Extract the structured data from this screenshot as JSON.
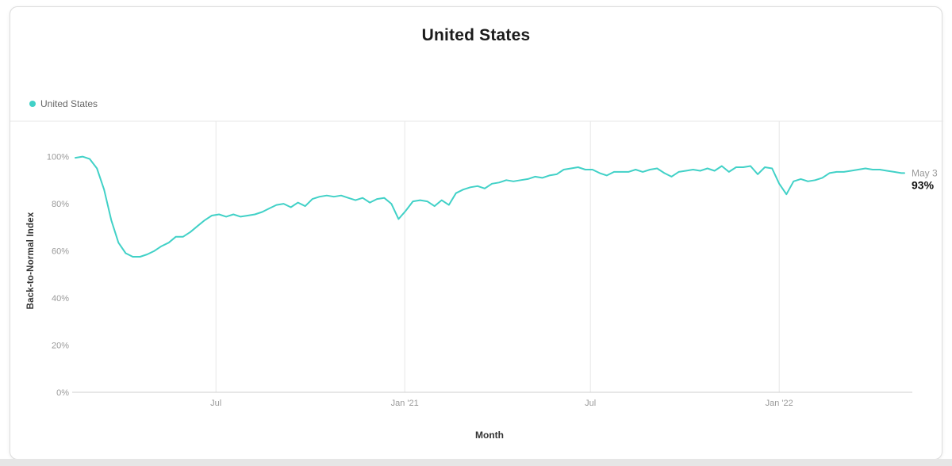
{
  "chart_data": {
    "type": "line",
    "title": "United States",
    "xlabel": "Month",
    "ylabel": "Back-to-Normal Index",
    "ylim": [
      0,
      115
    ],
    "yticks": [
      0,
      20,
      40,
      60,
      80,
      100
    ],
    "ytick_suffix": "%",
    "grid": "vertical",
    "legend_position": "top-left",
    "xticks": [
      {
        "date": "2020-07-01",
        "label": "Jul"
      },
      {
        "date": "2021-01-01",
        "label": "Jan '21"
      },
      {
        "date": "2021-07-01",
        "label": "Jul"
      },
      {
        "date": "2022-01-01",
        "label": "Jan '22"
      }
    ],
    "annotation": {
      "date_label": "May 3",
      "value_label": "93%"
    },
    "series": [
      {
        "name": "United States",
        "color": "#41d1c7",
        "points": [
          [
            "2020-02-15",
            99.5
          ],
          [
            "2020-02-22",
            100
          ],
          [
            "2020-02-29",
            99
          ],
          [
            "2020-03-07",
            95
          ],
          [
            "2020-03-14",
            86
          ],
          [
            "2020-03-21",
            73
          ],
          [
            "2020-03-28",
            63.5
          ],
          [
            "2020-04-04",
            59
          ],
          [
            "2020-04-11",
            57.5
          ],
          [
            "2020-04-18",
            57.5
          ],
          [
            "2020-04-25",
            58.5
          ],
          [
            "2020-05-02",
            60
          ],
          [
            "2020-05-09",
            62
          ],
          [
            "2020-05-16",
            63.5
          ],
          [
            "2020-05-23",
            66
          ],
          [
            "2020-05-30",
            66
          ],
          [
            "2020-06-06",
            68
          ],
          [
            "2020-06-13",
            70.5
          ],
          [
            "2020-06-20",
            73
          ],
          [
            "2020-06-27",
            75
          ],
          [
            "2020-07-04",
            75.5
          ],
          [
            "2020-07-11",
            74.5
          ],
          [
            "2020-07-18",
            75.5
          ],
          [
            "2020-07-25",
            74.5
          ],
          [
            "2020-08-01",
            75
          ],
          [
            "2020-08-08",
            75.5
          ],
          [
            "2020-08-15",
            76.5
          ],
          [
            "2020-08-22",
            78
          ],
          [
            "2020-08-29",
            79.5
          ],
          [
            "2020-09-05",
            80
          ],
          [
            "2020-09-12",
            78.5
          ],
          [
            "2020-09-19",
            80.5
          ],
          [
            "2020-09-26",
            79
          ],
          [
            "2020-10-03",
            82
          ],
          [
            "2020-10-10",
            83
          ],
          [
            "2020-10-17",
            83.5
          ],
          [
            "2020-10-24",
            83
          ],
          [
            "2020-10-31",
            83.5
          ],
          [
            "2020-11-07",
            82.5
          ],
          [
            "2020-11-14",
            81.5
          ],
          [
            "2020-11-21",
            82.5
          ],
          [
            "2020-11-28",
            80.5
          ],
          [
            "2020-12-05",
            82
          ],
          [
            "2020-12-12",
            82.5
          ],
          [
            "2020-12-19",
            80
          ],
          [
            "2020-12-26",
            73.5
          ],
          [
            "2021-01-02",
            77
          ],
          [
            "2021-01-09",
            81
          ],
          [
            "2021-01-16",
            81.5
          ],
          [
            "2021-01-23",
            81
          ],
          [
            "2021-01-30",
            79
          ],
          [
            "2021-02-06",
            81.5
          ],
          [
            "2021-02-13",
            79.5
          ],
          [
            "2021-02-20",
            84.5
          ],
          [
            "2021-02-27",
            86
          ],
          [
            "2021-03-06",
            87
          ],
          [
            "2021-03-13",
            87.5
          ],
          [
            "2021-03-20",
            86.5
          ],
          [
            "2021-03-27",
            88.5
          ],
          [
            "2021-04-03",
            89
          ],
          [
            "2021-04-10",
            90
          ],
          [
            "2021-04-17",
            89.5
          ],
          [
            "2021-04-24",
            90
          ],
          [
            "2021-05-01",
            90.5
          ],
          [
            "2021-05-08",
            91.5
          ],
          [
            "2021-05-15",
            91
          ],
          [
            "2021-05-22",
            92
          ],
          [
            "2021-05-29",
            92.5
          ],
          [
            "2021-06-05",
            94.5
          ],
          [
            "2021-06-12",
            95
          ],
          [
            "2021-06-19",
            95.5
          ],
          [
            "2021-06-26",
            94.5
          ],
          [
            "2021-07-03",
            94.5
          ],
          [
            "2021-07-10",
            93
          ],
          [
            "2021-07-17",
            92
          ],
          [
            "2021-07-24",
            93.5
          ],
          [
            "2021-07-31",
            93.5
          ],
          [
            "2021-08-07",
            93.5
          ],
          [
            "2021-08-14",
            94.5
          ],
          [
            "2021-08-21",
            93.5
          ],
          [
            "2021-08-28",
            94.5
          ],
          [
            "2021-09-04",
            95
          ],
          [
            "2021-09-11",
            93
          ],
          [
            "2021-09-18",
            91.5
          ],
          [
            "2021-09-25",
            93.5
          ],
          [
            "2021-10-02",
            94
          ],
          [
            "2021-10-09",
            94.5
          ],
          [
            "2021-10-16",
            94
          ],
          [
            "2021-10-23",
            95
          ],
          [
            "2021-10-30",
            94
          ],
          [
            "2021-11-06",
            96
          ],
          [
            "2021-11-13",
            93.5
          ],
          [
            "2021-11-20",
            95.5
          ],
          [
            "2021-11-27",
            95.5
          ],
          [
            "2021-12-04",
            96
          ],
          [
            "2021-12-11",
            92.5
          ],
          [
            "2021-12-18",
            95.5
          ],
          [
            "2021-12-25",
            95
          ],
          [
            "2022-01-01",
            88.5
          ],
          [
            "2022-01-08",
            84
          ],
          [
            "2022-01-15",
            89.5
          ],
          [
            "2022-01-22",
            90.5
          ],
          [
            "2022-01-29",
            89.5
          ],
          [
            "2022-02-05",
            90
          ],
          [
            "2022-02-12",
            91
          ],
          [
            "2022-02-19",
            93
          ],
          [
            "2022-02-26",
            93.5
          ],
          [
            "2022-03-05",
            93.5
          ],
          [
            "2022-03-12",
            94
          ],
          [
            "2022-03-19",
            94.5
          ],
          [
            "2022-03-26",
            95
          ],
          [
            "2022-04-02",
            94.5
          ],
          [
            "2022-04-09",
            94.5
          ],
          [
            "2022-04-16",
            94
          ],
          [
            "2022-04-23",
            93.5
          ],
          [
            "2022-04-30",
            93
          ],
          [
            "2022-05-03",
            93
          ]
        ]
      }
    ]
  }
}
